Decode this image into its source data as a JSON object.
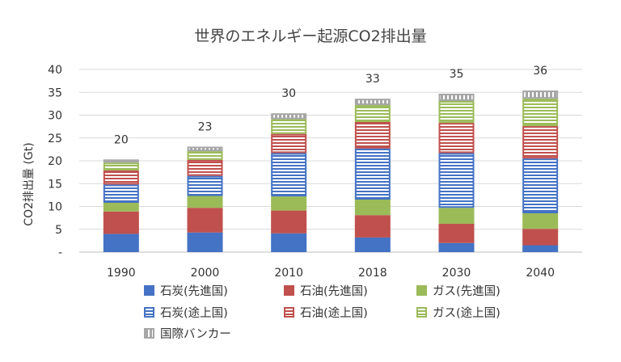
{
  "chart_data": {
    "type": "bar",
    "stacked": true,
    "title": "世界のエネルギー起源CO2排出量",
    "xlabel": "",
    "ylabel": "CO2排出量 (Gt)",
    "ylim": [
      0,
      40
    ],
    "yticks": [
      0,
      5,
      10,
      15,
      20,
      25,
      30,
      35,
      40
    ],
    "ytick_labels": [
      "-",
      "5",
      "10",
      "15",
      "20",
      "25",
      "30",
      "35",
      "40"
    ],
    "grid": true,
    "legend_position": "bottom",
    "categories": [
      "1990",
      "2000",
      "2010",
      "2018",
      "2030",
      "2040"
    ],
    "totals": [
      "20",
      "23",
      "30",
      "33",
      "35",
      "36"
    ],
    "series": [
      {
        "name": "石炭(先進国)",
        "color": "#4472C4",
        "pattern": "solid",
        "values": [
          4.0,
          4.3,
          4.1,
          3.2,
          2.0,
          1.5
        ]
      },
      {
        "name": "石油(先進国)",
        "color": "#C0504D",
        "pattern": "solid",
        "values": [
          4.9,
          5.4,
          5.0,
          4.9,
          4.2,
          3.6
        ]
      },
      {
        "name": "ガス(先進国)",
        "color": "#9BBB59",
        "pattern": "solid",
        "values": [
          1.9,
          2.6,
          3.1,
          3.4,
          3.5,
          3.4
        ]
      },
      {
        "name": "石炭(途上国)",
        "color": "#4472C4",
        "pattern": "stripes",
        "values": [
          4.0,
          4.4,
          9.5,
          11.2,
          12.0,
          12.0
        ]
      },
      {
        "name": "石油(途上国)",
        "color": "#C0504D",
        "pattern": "stripes",
        "values": [
          3.1,
          3.5,
          4.2,
          5.8,
          6.6,
          7.1
        ]
      },
      {
        "name": "ガス(途上国)",
        "color": "#9BBB59",
        "pattern": "stripes",
        "values": [
          1.7,
          1.9,
          3.2,
          3.7,
          4.8,
          6.0
        ]
      },
      {
        "name": "国際バンカー",
        "color": "#A6A6A6",
        "pattern": "vertical",
        "values": [
          0.7,
          1.0,
          1.3,
          1.4,
          1.6,
          1.8
        ]
      }
    ]
  }
}
